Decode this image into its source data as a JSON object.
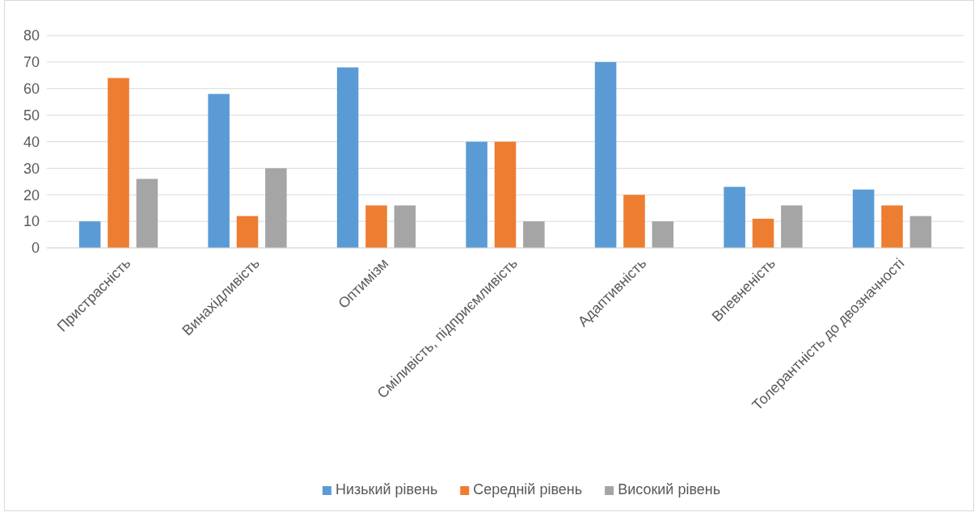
{
  "chart_data": {
    "type": "bar",
    "categories": [
      "Пристрасність",
      "Винахідливість",
      "Оптимізм",
      "Сміливість, підприємливість",
      "Адаптивність",
      "Впевненість",
      "Толерантність до двозначності"
    ],
    "series": [
      {
        "name": "Низький рівень",
        "color": "#5b9bd5",
        "values": [
          10,
          58,
          68,
          40,
          70,
          23,
          22
        ]
      },
      {
        "name": "Середній рівень",
        "color": "#ed7d31",
        "values": [
          64,
          12,
          16,
          40,
          20,
          11,
          16
        ]
      },
      {
        "name": "Високий рівень",
        "color": "#a5a5a5",
        "values": [
          26,
          30,
          16,
          10,
          10,
          16,
          12
        ]
      }
    ],
    "ylim": [
      0,
      80
    ],
    "yticks": [
      0,
      10,
      20,
      30,
      40,
      50,
      60,
      70,
      80
    ],
    "grid": "y",
    "legend": "bottom"
  }
}
